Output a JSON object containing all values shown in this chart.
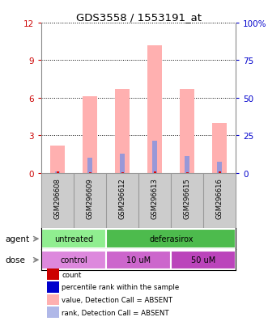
{
  "title": "GDS3558 / 1553191_at",
  "samples": [
    "GSM296608",
    "GSM296609",
    "GSM296612",
    "GSM296613",
    "GSM296615",
    "GSM296616"
  ],
  "pink_bar_heights": [
    2.2,
    6.1,
    6.7,
    10.2,
    6.7,
    4.0
  ],
  "blue_bar_heights": [
    0.15,
    1.2,
    1.55,
    2.55,
    1.35,
    0.9
  ],
  "red_bar_heights": [
    0.12,
    0.08,
    0.08,
    0.12,
    0.08,
    0.1
  ],
  "ylim_left": [
    0,
    12
  ],
  "ylim_right": [
    0,
    100
  ],
  "yticks_left": [
    0,
    3,
    6,
    9,
    12
  ],
  "ytick_labels_left": [
    "0",
    "3",
    "6",
    "9",
    "12"
  ],
  "yticks_right": [
    0,
    25,
    50,
    75,
    100
  ],
  "ytick_labels_right": [
    "0",
    "25",
    "50",
    "75",
    "100%"
  ],
  "agent_groups": [
    {
      "label": "untreated",
      "span": [
        0,
        2
      ],
      "color": "#90ee90"
    },
    {
      "label": "deferasirox",
      "span": [
        2,
        6
      ],
      "color": "#4dbb4d"
    }
  ],
  "dose_groups": [
    {
      "label": "control",
      "span": [
        0,
        2
      ],
      "color": "#dd88dd"
    },
    {
      "label": "10 uM",
      "span": [
        2,
        4
      ],
      "color": "#cc66cc"
    },
    {
      "label": "50 uM",
      "span": [
        4,
        6
      ],
      "color": "#bb44bb"
    }
  ],
  "legend_items": [
    {
      "label": "count",
      "color": "#cc0000"
    },
    {
      "label": "percentile rank within the sample",
      "color": "#0000cc"
    },
    {
      "label": "value, Detection Call = ABSENT",
      "color": "#ffb0b0"
    },
    {
      "label": "rank, Detection Call = ABSENT",
      "color": "#b0b8e8"
    }
  ],
  "bar_color_pink": "#ffb0b0",
  "bar_color_blue": "#9898d8",
  "bar_color_red": "#dd0000",
  "left_axis_color": "#cc0000",
  "right_axis_color": "#0000cc",
  "agent_label": "agent",
  "dose_label": "dose",
  "sample_box_color": "#cccccc"
}
